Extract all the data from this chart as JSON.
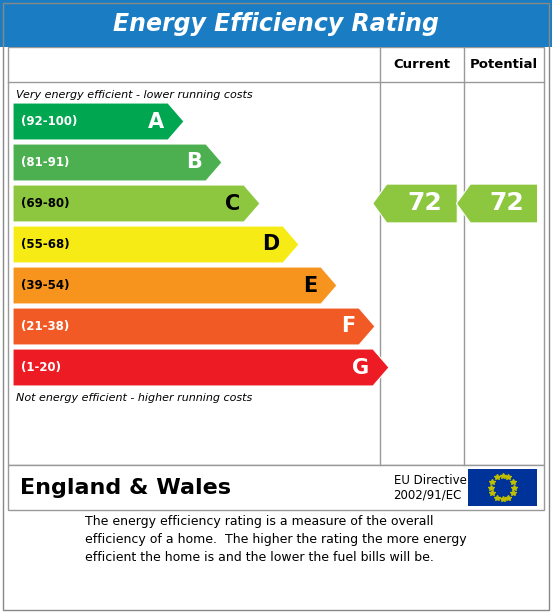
{
  "title": "Energy Efficiency Rating",
  "title_bg": "#1a7dc4",
  "title_color": "#ffffff",
  "bands": [
    {
      "label": "A",
      "range": "(92-100)",
      "color": "#00a650"
    },
    {
      "label": "B",
      "range": "(81-91)",
      "color": "#4caf50"
    },
    {
      "label": "C",
      "range": "(69-80)",
      "color": "#8dc63f"
    },
    {
      "label": "D",
      "range": "(55-68)",
      "color": "#f6eb14"
    },
    {
      "label": "E",
      "range": "(39-54)",
      "color": "#f7941d"
    },
    {
      "label": "F",
      "range": "(21-38)",
      "color": "#f15a24"
    },
    {
      "label": "G",
      "range": "(1-20)",
      "color": "#ed1c24"
    }
  ],
  "current_value": "72",
  "potential_value": "72",
  "arrow_color": "#8dc63f",
  "current_band_index": 2,
  "top_note": "Very energy efficient - lower running costs",
  "bottom_note": "Not energy efficient - higher running costs",
  "footer_left": "England & Wales",
  "footer_directive": "EU Directive\n2002/91/EC",
  "footer_text": "The energy efficiency rating is a measure of the overall\nefficiency of a home.  The higher the rating the more energy\nefficient the home is and the lower the fuel bills will be.",
  "col_header_current": "Current",
  "col_header_potential": "Potential",
  "band_label_colors": [
    "#ffffff",
    "#ffffff",
    "#000000",
    "#000000",
    "#000000",
    "#ffffff",
    "#ffffff"
  ],
  "letter_colors": [
    "#ffffff",
    "#ffffff",
    "#000000",
    "#000000",
    "#000000",
    "#ffffff",
    "#ffffff"
  ]
}
